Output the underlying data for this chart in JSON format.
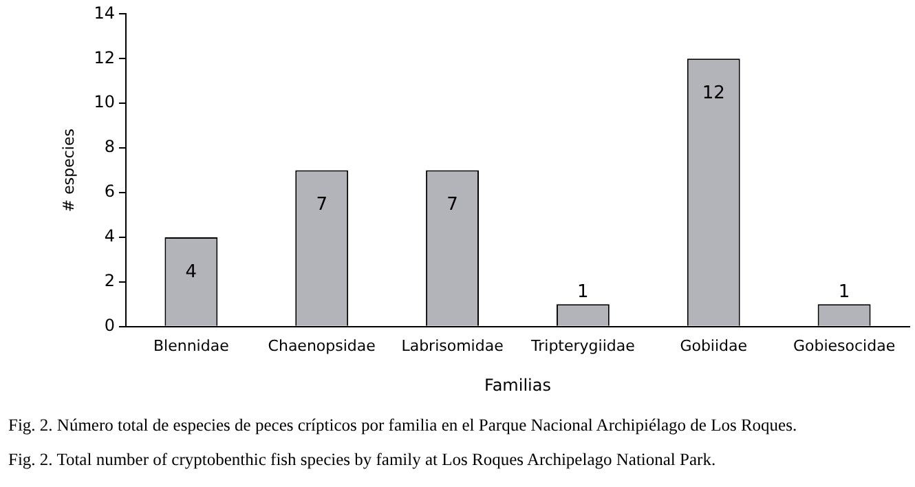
{
  "chart_data": {
    "type": "bar",
    "xlabel": "Familias",
    "ylabel": "# especies",
    "categories": [
      "Blennidae",
      "Chaenopsidae",
      "Labrisomidae",
      "Tripterygiidae",
      "Gobiidae",
      "Gobiesocidae"
    ],
    "values": [
      4,
      7,
      7,
      1,
      12,
      1
    ],
    "color": "#b3b3ba",
    "ylim": [
      0,
      14
    ],
    "yticks": [
      0,
      2,
      4,
      6,
      8,
      10,
      12,
      14
    ],
    "grid": false,
    "legend": false,
    "data_labels": true,
    "annotations": [
      "Fig. 2. Número total de especies de peces crípticos por familia en el Parque Nacional Archipiélago de Los Roques.",
      "Fig. 2. Total number of cryptobenthic fish species by family at Los Roques Archipelago National Park."
    ]
  }
}
